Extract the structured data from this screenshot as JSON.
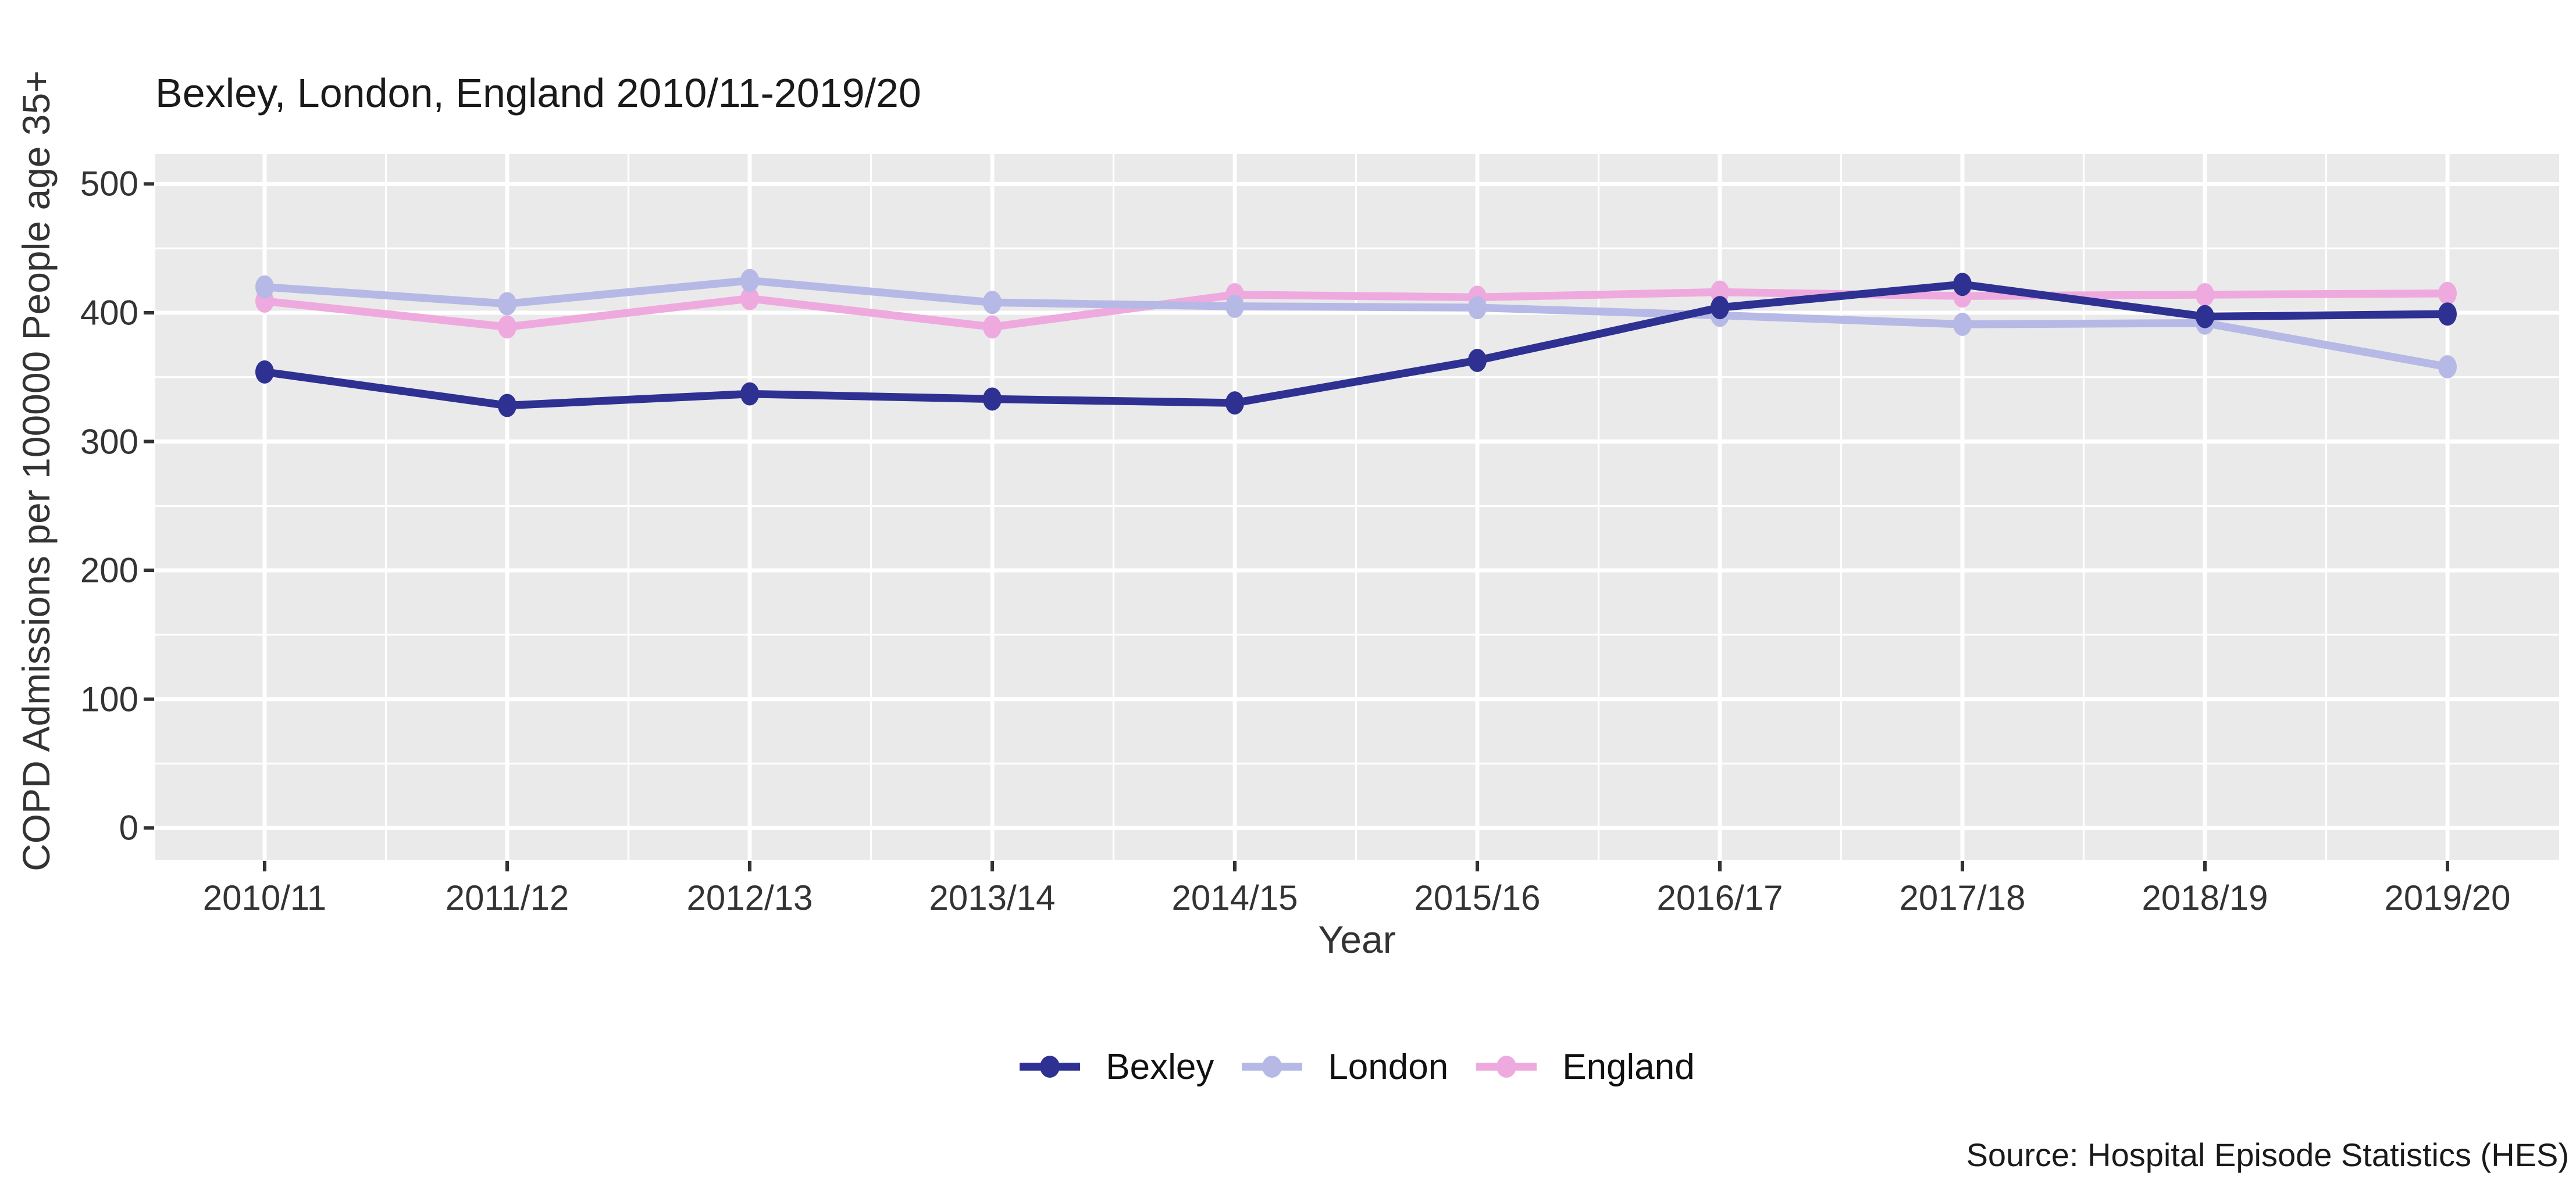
{
  "chart_data": {
    "type": "line",
    "title": "Bexley, London, England 2010/11-2019/20",
    "xlabel": "Year",
    "ylabel": "COPD Admissions per 100000 People age 35+",
    "categories": [
      "2010/11",
      "2011/12",
      "2012/13",
      "2013/14",
      "2014/15",
      "2015/16",
      "2016/17",
      "2017/18",
      "2018/19",
      "2019/20"
    ],
    "series": [
      {
        "name": "Bexley",
        "color": "#2e3192",
        "values": [
          354,
          328,
          337,
          333,
          330,
          363,
          404,
          422,
          397,
          399
        ]
      },
      {
        "name": "London",
        "color": "#b6b9e6",
        "values": [
          420,
          407,
          425,
          408,
          405,
          404,
          398,
          391,
          392,
          358
        ]
      },
      {
        "name": "England",
        "color": "#eeaade",
        "values": [
          409,
          389,
          411,
          389,
          414,
          412,
          416,
          413,
          414,
          415
        ]
      }
    ],
    "ylim": [
      0,
      500
    ],
    "y_major_ticks": [
      0,
      100,
      200,
      300,
      400,
      500
    ],
    "y_minor_step": 50,
    "grid": "white major and minor gridlines on gray panel",
    "legend_position": "bottom-center",
    "panel_background": "#eaeaea",
    "gridline_color": "#ffffff",
    "tick_mark_color": "#333333",
    "axis_text_color": "#333333"
  },
  "source_note": "Source: Hospital Episode Statistics (HES)"
}
